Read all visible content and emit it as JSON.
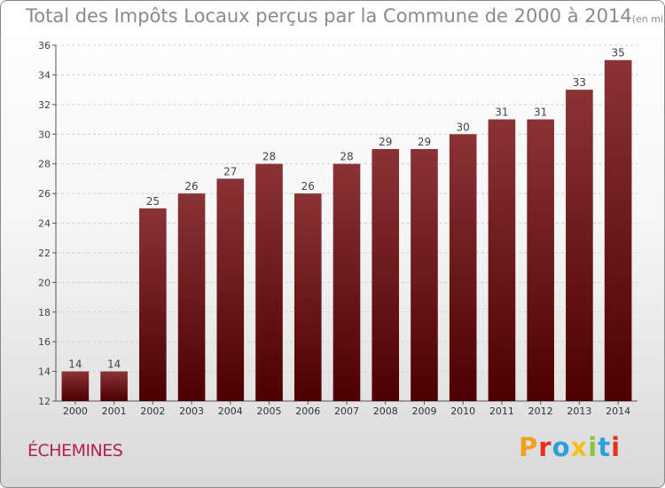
{
  "chart_data": {
    "type": "bar",
    "title": "Total des Impôts Locaux perçus par la Commune de 2000 à 2014",
    "unit_note": "(en milliers d'€)",
    "categories": [
      "2000",
      "2001",
      "2002",
      "2003",
      "2004",
      "2005",
      "2006",
      "2007",
      "2008",
      "2009",
      "2010",
      "2011",
      "2012",
      "2013",
      "2014"
    ],
    "values": [
      14,
      14,
      25,
      26,
      27,
      28,
      26,
      28,
      29,
      29,
      30,
      31,
      31,
      33,
      35
    ],
    "ylim": [
      12,
      36
    ],
    "yticks": [
      12,
      14,
      16,
      18,
      20,
      22,
      24,
      26,
      28,
      30,
      32,
      34,
      36
    ],
    "xlabel": "",
    "ylabel": "",
    "grid": true,
    "bar_color_top": "#8a3336",
    "bar_color_bottom": "#4d0000"
  },
  "commune": "ÉCHEMINES",
  "logo": {
    "text": "Proxiti",
    "letter_colors": [
      "#f0a020",
      "#e8321e",
      "#2aa0dc",
      "#f0c020",
      "#8cc43c",
      "#2aa0dc",
      "#e8321e"
    ]
  },
  "colors": {
    "title": "#8a8a8a",
    "commune": "#b2204d"
  }
}
